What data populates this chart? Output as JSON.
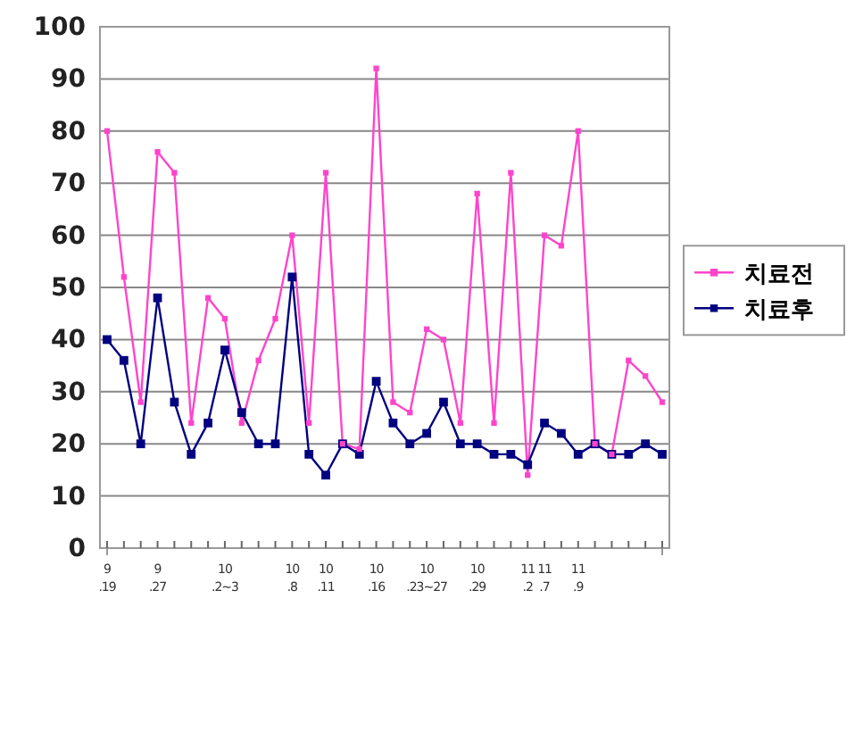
{
  "chart_data": {
    "type": "line",
    "categories": [
      "9.19",
      null,
      null,
      "9.27",
      null,
      null,
      null,
      "10.2~3",
      null,
      null,
      null,
      "10.8",
      null,
      "10.11",
      null,
      null,
      "10.16",
      null,
      null,
      "10.23~27",
      null,
      null,
      "10.29",
      null,
      null,
      "11.2",
      "11.7",
      null,
      "11.9",
      null,
      null,
      null,
      null,
      null
    ],
    "series": [
      {
        "name": "치료전",
        "color": "#ff44cc",
        "values": [
          80,
          52,
          28,
          76,
          72,
          24,
          48,
          44,
          24,
          36,
          44,
          60,
          24,
          72,
          20,
          19,
          92,
          28,
          26,
          42,
          40,
          24,
          68,
          24,
          72,
          14,
          60,
          58,
          80,
          20,
          18,
          36,
          33,
          28
        ]
      },
      {
        "name": "치료후",
        "color": "#000080",
        "values": [
          40,
          36,
          20,
          48,
          28,
          18,
          24,
          38,
          26,
          20,
          20,
          52,
          18,
          14,
          20,
          18,
          32,
          24,
          20,
          22,
          28,
          20,
          20,
          18,
          18,
          16,
          24,
          22,
          18,
          20,
          18,
          18,
          20,
          18
        ]
      }
    ],
    "ylim": [
      0,
      100
    ],
    "yticks": [
      0,
      10,
      20,
      30,
      40,
      50,
      60,
      70,
      80,
      90,
      100
    ],
    "grid": "y",
    "legend": "right",
    "marker": "square"
  }
}
